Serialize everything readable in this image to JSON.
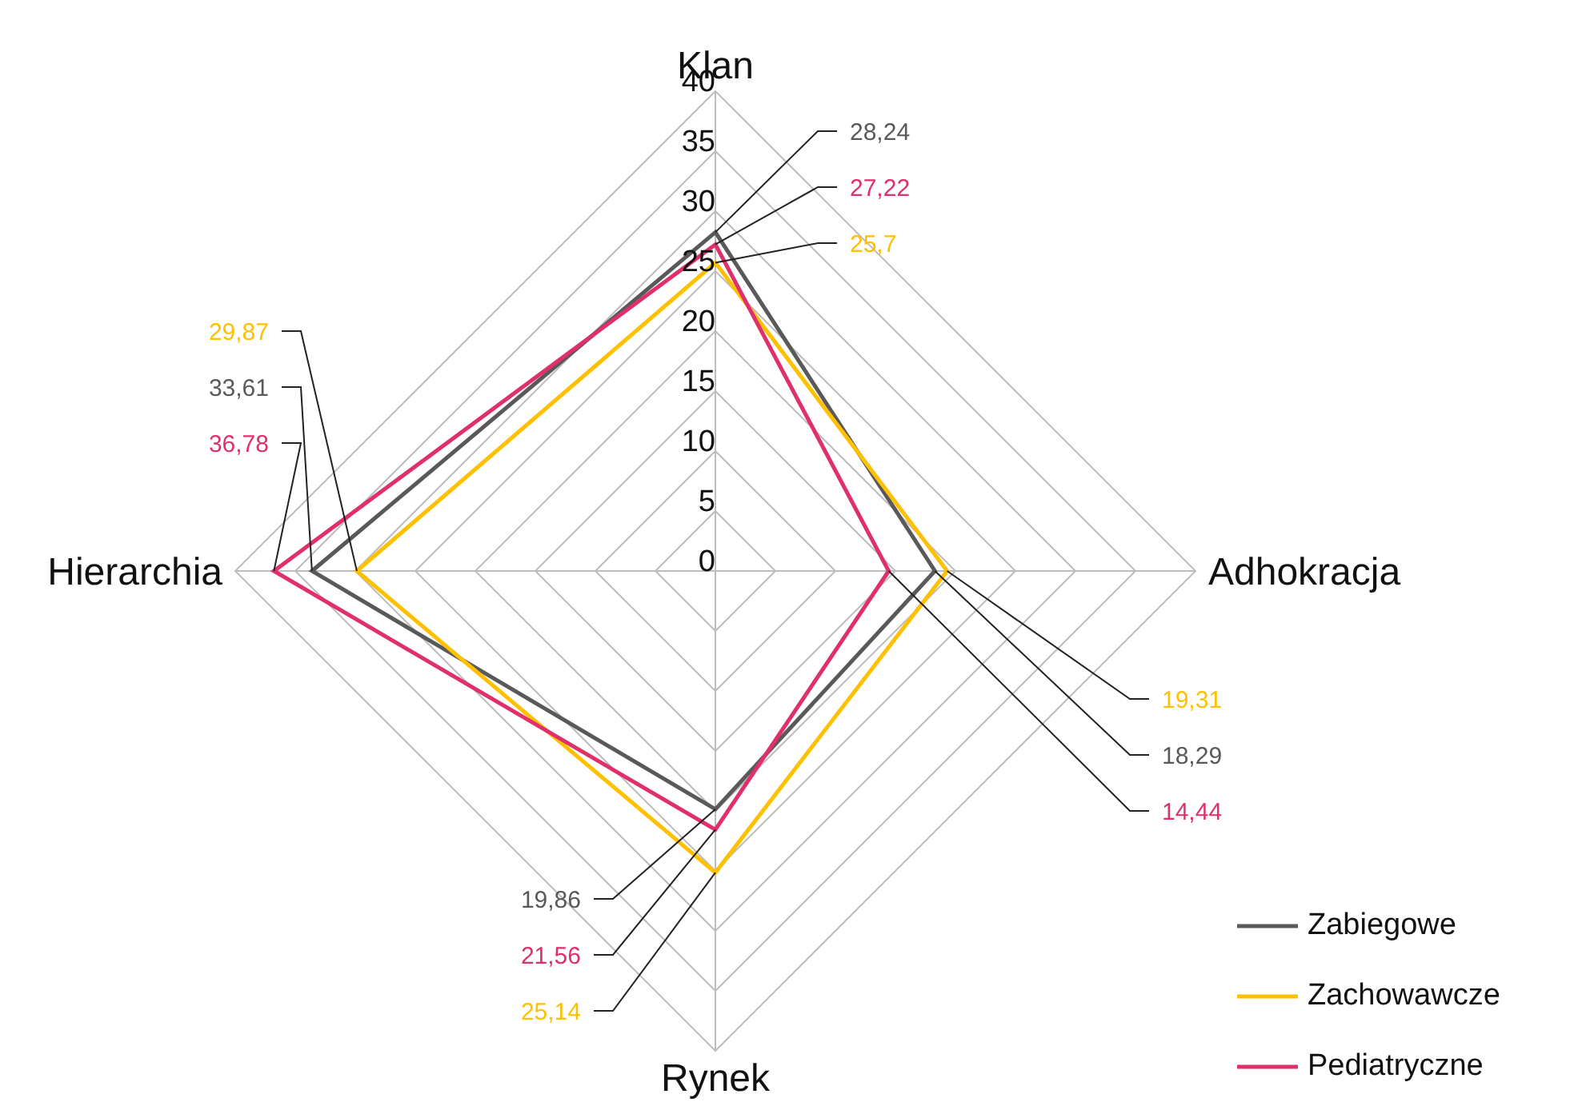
{
  "chart_data": {
    "type": "radar",
    "categories": [
      "Klan",
      "Adhokracja",
      "Rynek",
      "Hierarchia"
    ],
    "series": [
      {
        "name": "Zabiegowe",
        "color": "#595959",
        "values": [
          28.24,
          18.29,
          19.86,
          33.61
        ],
        "value_labels": [
          "28,24",
          "18,29",
          "19,86",
          "33,61"
        ]
      },
      {
        "name": "Zachowawcze",
        "color": "#ffc000",
        "values": [
          25.7,
          19.31,
          25.14,
          29.87
        ],
        "value_labels": [
          "25,7",
          "19,31",
          "25,14",
          "29,87"
        ]
      },
      {
        "name": "Pediatryczne",
        "color": "#e0306a",
        "values": [
          27.22,
          14.44,
          21.56,
          36.78
        ],
        "value_labels": [
          "27,22",
          "14,44",
          "21,56",
          "36,78"
        ]
      }
    ],
    "ylim": [
      0,
      40
    ],
    "yticks": [
      0,
      5,
      10,
      15,
      20,
      25,
      30,
      35,
      40
    ],
    "grid": true,
    "legend": "bottom right"
  }
}
